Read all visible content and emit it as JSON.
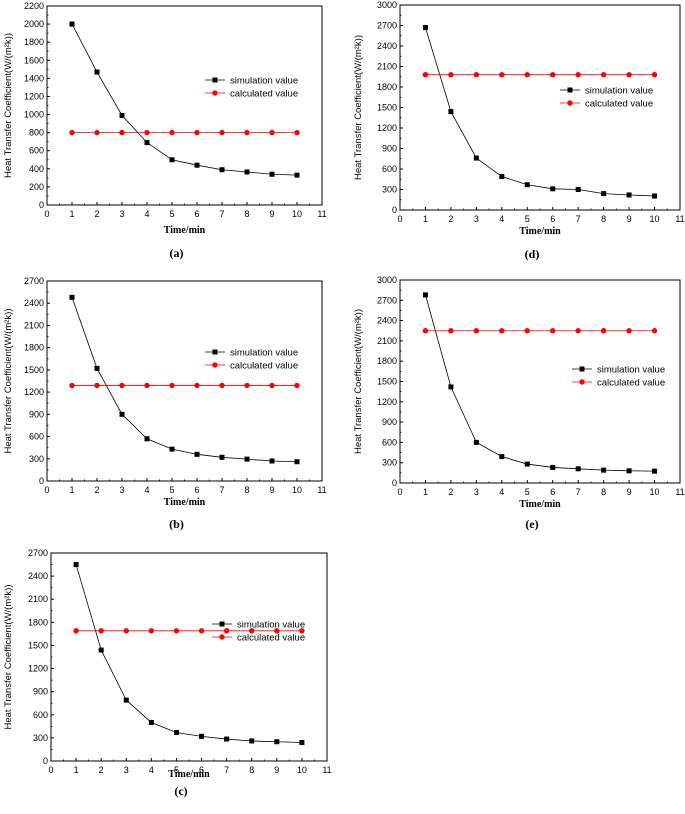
{
  "chart_data": [
    {
      "type": "line",
      "panel": "(a)",
      "xlabel": "Time/min",
      "ylabel": "Heat Transfer Coefficient(W/(m²k))",
      "xlim": [
        0,
        11
      ],
      "ylim": [
        0,
        2200
      ],
      "xticks": [
        0,
        1,
        2,
        3,
        4,
        5,
        6,
        7,
        8,
        9,
        10,
        11
      ],
      "yticks": [
        0,
        200,
        400,
        600,
        800,
        1000,
        1200,
        1400,
        1600,
        1800,
        2000,
        2200
      ],
      "legend_position": "right",
      "series": [
        {
          "name": "simulation value",
          "color": "#000000",
          "marker": "square",
          "x": [
            1,
            2,
            3,
            4,
            5,
            6,
            7,
            8,
            9,
            10
          ],
          "values": [
            2000,
            1470,
            990,
            690,
            500,
            440,
            390,
            365,
            340,
            330
          ]
        },
        {
          "name": "calculated value",
          "color": "#ff0000",
          "marker": "circle",
          "x": [
            1,
            2,
            3,
            4,
            5,
            6,
            7,
            8,
            9,
            10
          ],
          "values": [
            800,
            800,
            800,
            800,
            800,
            800,
            800,
            800,
            800,
            800
          ]
        }
      ]
    },
    {
      "type": "line",
      "panel": "(d)",
      "xlabel": "Time/min",
      "ylabel": "Heat Transfer Coefficient(W/(m²k))",
      "xlim": [
        0,
        11
      ],
      "ylim": [
        0,
        3000
      ],
      "xticks": [
        0,
        1,
        2,
        3,
        4,
        5,
        6,
        7,
        8,
        9,
        10,
        11
      ],
      "yticks": [
        0,
        300,
        600,
        900,
        1200,
        1500,
        1800,
        2100,
        2400,
        2700,
        3000
      ],
      "legend_position": "right",
      "series": [
        {
          "name": "simulation value",
          "color": "#000000",
          "marker": "square",
          "x": [
            1,
            2,
            3,
            4,
            5,
            6,
            7,
            8,
            9,
            10
          ],
          "values": [
            2670,
            1440,
            760,
            490,
            370,
            310,
            300,
            240,
            220,
            205
          ]
        },
        {
          "name": "calculated value",
          "color": "#ff0000",
          "marker": "circle",
          "x": [
            1,
            2,
            3,
            4,
            5,
            6,
            7,
            8,
            9,
            10
          ],
          "values": [
            1980,
            1980,
            1980,
            1980,
            1980,
            1980,
            1980,
            1980,
            1980,
            1980
          ]
        }
      ]
    },
    {
      "type": "line",
      "panel": "(b)",
      "xlabel": "Time/min",
      "ylabel": "Heat Transfer Coefficient(W/(m²k))",
      "xlim": [
        0,
        11
      ],
      "ylim": [
        0,
        2700
      ],
      "xticks": [
        0,
        1,
        2,
        3,
        4,
        5,
        6,
        7,
        8,
        9,
        10,
        11
      ],
      "yticks": [
        0,
        300,
        600,
        900,
        1200,
        1500,
        1800,
        2100,
        2400,
        2700
      ],
      "legend_position": "right",
      "series": [
        {
          "name": "simulation value",
          "color": "#000000",
          "marker": "square",
          "x": [
            1,
            2,
            3,
            4,
            5,
            6,
            7,
            8,
            9,
            10
          ],
          "values": [
            2480,
            1520,
            900,
            570,
            430,
            360,
            320,
            295,
            270,
            260
          ]
        },
        {
          "name": "calculated value",
          "color": "#ff0000",
          "marker": "circle",
          "x": [
            1,
            2,
            3,
            4,
            5,
            6,
            7,
            8,
            9,
            10
          ],
          "values": [
            1290,
            1290,
            1290,
            1290,
            1290,
            1290,
            1290,
            1290,
            1290,
            1290
          ]
        }
      ]
    },
    {
      "type": "line",
      "panel": "(e)",
      "xlabel": "Time/min",
      "ylabel": "Heat Transfer Coefficient(W/(m²k))",
      "xlim": [
        0,
        11
      ],
      "ylim": [
        0,
        3000
      ],
      "xticks": [
        0,
        1,
        2,
        3,
        4,
        5,
        6,
        7,
        8,
        9,
        10,
        11
      ],
      "yticks": [
        0,
        300,
        600,
        900,
        1200,
        1500,
        1800,
        2100,
        2400,
        2700,
        3000
      ],
      "legend_position": "right",
      "series": [
        {
          "name": "simulation value",
          "color": "#000000",
          "marker": "square",
          "x": [
            1,
            2,
            3,
            4,
            5,
            6,
            7,
            8,
            9,
            10
          ],
          "values": [
            2780,
            1420,
            600,
            390,
            280,
            230,
            210,
            190,
            180,
            175
          ]
        },
        {
          "name": "calculated value",
          "color": "#ff0000",
          "marker": "circle",
          "x": [
            1,
            2,
            3,
            4,
            5,
            6,
            7,
            8,
            9,
            10
          ],
          "values": [
            2250,
            2250,
            2250,
            2250,
            2250,
            2250,
            2250,
            2250,
            2250,
            2250
          ]
        }
      ]
    },
    {
      "type": "line",
      "panel": "(c)",
      "xlabel": "Time/min",
      "ylabel": "Heat Transfer Coefficient(W/(m²k))",
      "xlim": [
        0,
        11
      ],
      "ylim": [
        0,
        2700
      ],
      "xticks": [
        0,
        1,
        2,
        3,
        4,
        5,
        6,
        7,
        8,
        9,
        10,
        11
      ],
      "yticks": [
        0,
        300,
        600,
        900,
        1200,
        1500,
        1800,
        2100,
        2400,
        2700
      ],
      "legend_position": "right",
      "series": [
        {
          "name": "simulation value",
          "color": "#000000",
          "marker": "square",
          "x": [
            1,
            2,
            3,
            4,
            5,
            6,
            7,
            8,
            9,
            10
          ],
          "values": [
            2550,
            1440,
            790,
            500,
            370,
            320,
            285,
            260,
            250,
            240
          ]
        },
        {
          "name": "calculated value",
          "color": "#ff0000",
          "marker": "circle",
          "x": [
            1,
            2,
            3,
            4,
            5,
            6,
            7,
            8,
            9,
            10
          ],
          "values": [
            1690,
            1690,
            1690,
            1690,
            1690,
            1690,
            1690,
            1690,
            1690,
            1690
          ]
        }
      ]
    }
  ]
}
